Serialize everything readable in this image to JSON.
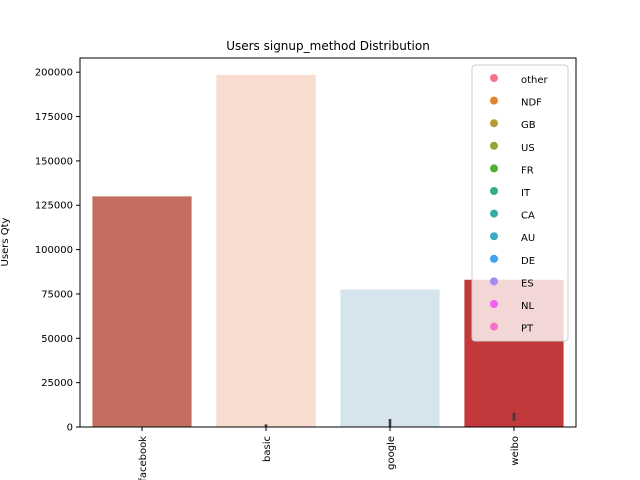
{
  "chart_data": {
    "type": "bar",
    "title": "Users signup_method Distribution",
    "xlabel": "",
    "ylabel": "Users Qty",
    "categories": [
      "facebook",
      "basic",
      "google",
      "weibo"
    ],
    "values": [
      130000,
      198500,
      77500,
      83000
    ],
    "bar_colors": [
      "#c46e60",
      "#f7dccf",
      "#d6e4ee",
      "#c2383b"
    ],
    "error_bars": [
      {
        "low": 0,
        "high": 0
      },
      {
        "low": 0,
        "high": 1500
      },
      {
        "low": 0,
        "high": 4500
      },
      {
        "low": 3500,
        "high": 8000
      }
    ],
    "ylim": [
      0,
      208000
    ],
    "yticks": [
      0,
      25000,
      50000,
      75000,
      100000,
      125000,
      150000,
      175000,
      200000
    ],
    "ytick_labels": [
      "0",
      "25000",
      "50000",
      "75000",
      "100000",
      "125000",
      "150000",
      "175000",
      "200000"
    ],
    "grid": false,
    "legend_position": "top-right",
    "legend": [
      {
        "label": "other",
        "color": "#f77189"
      },
      {
        "label": "NDF",
        "color": "#e5822f"
      },
      {
        "label": "GB",
        "color": "#b89b32"
      },
      {
        "label": "US",
        "color": "#96a332"
      },
      {
        "label": "FR",
        "color": "#50b131"
      },
      {
        "label": "IT",
        "color": "#34ae87"
      },
      {
        "label": "CA",
        "color": "#36ada4"
      },
      {
        "label": "AU",
        "color": "#38a9c5"
      },
      {
        "label": "DE",
        "color": "#3da2f0"
      },
      {
        "label": "ES",
        "color": "#a48cf4"
      },
      {
        "label": "NL",
        "color": "#f45cf2"
      },
      {
        "label": "PT",
        "color": "#f76fc7"
      }
    ]
  }
}
